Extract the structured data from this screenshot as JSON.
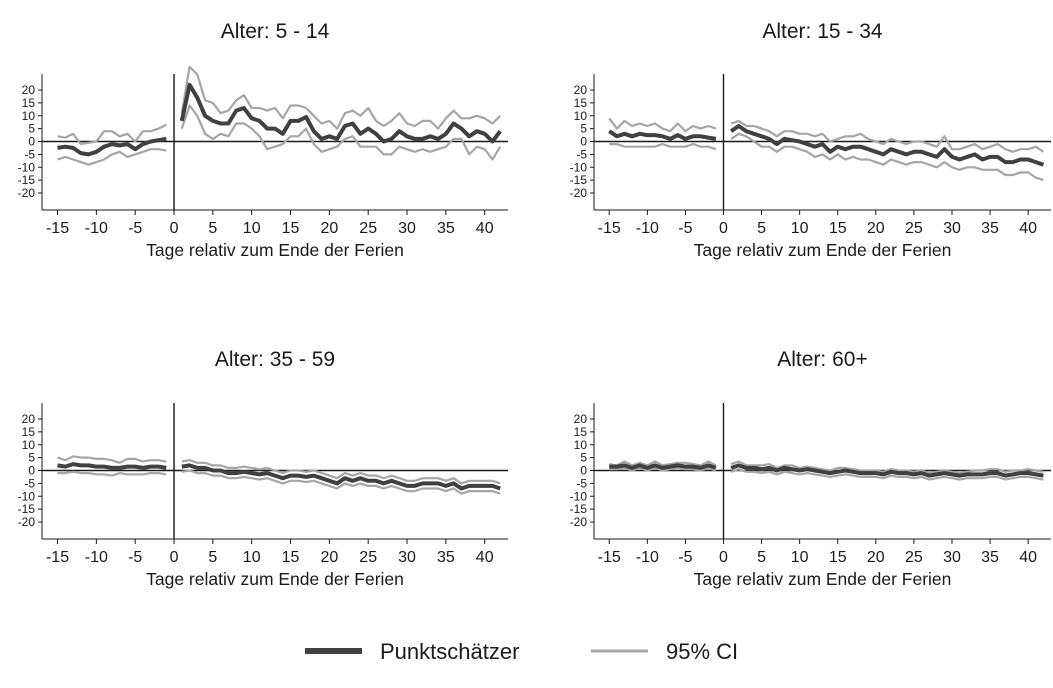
{
  "chart_data": [
    {
      "type": "line",
      "title": "Alter: 5 - 14",
      "xlabel": "Tage relativ zum Ende der Ferien",
      "ylabel": "",
      "xlim": [
        -17,
        43
      ],
      "ylim": [
        -20,
        20
      ],
      "xticks": [
        -15,
        -10,
        -5,
        0,
        5,
        10,
        15,
        20,
        25,
        30,
        35,
        40
      ],
      "yticks": [
        20,
        15,
        10,
        5,
        0,
        -5,
        -10,
        -15,
        -20
      ],
      "x_pre": [
        -15,
        -14,
        -13,
        -12,
        -11,
        -10,
        -9,
        -8,
        -7,
        -6,
        -5,
        -4,
        -3,
        -2,
        -1
      ],
      "x_post": [
        1,
        2,
        3,
        4,
        5,
        6,
        7,
        8,
        9,
        10,
        11,
        12,
        13,
        14,
        15,
        16,
        17,
        18,
        19,
        20,
        21,
        22,
        23,
        24,
        25,
        26,
        27,
        28,
        29,
        30,
        31,
        32,
        33,
        34,
        35,
        36,
        37,
        38,
        39,
        40,
        41,
        42
      ],
      "series": [
        {
          "name": "Punktschätzer",
          "pre": [
            -2.5,
            -2,
            -2.5,
            -4.5,
            -5,
            -4,
            -2,
            -1,
            -1.5,
            -1,
            -3,
            -1,
            0,
            0.5,
            1
          ],
          "post": [
            8,
            22,
            17,
            10,
            8,
            7,
            7,
            12,
            13,
            9,
            8,
            5,
            5,
            3,
            8,
            8,
            9.5,
            4,
            1,
            2,
            1,
            6,
            7,
            3,
            5,
            3,
            0,
            1,
            4,
            2,
            1,
            1,
            2,
            1,
            3,
            7,
            5,
            2,
            4,
            3,
            0,
            4
          ]
        },
        {
          "name": "95% CI",
          "pre": [
            2,
            1.5,
            3,
            -1,
            -0.5,
            0,
            4,
            4,
            2,
            3,
            0,
            4,
            4,
            5,
            6.5
          ],
          "post": [
            11,
            29,
            26,
            16,
            15,
            11,
            12,
            16,
            18,
            13,
            13,
            12,
            13,
            9,
            14,
            14,
            13,
            10,
            7,
            8,
            5,
            11,
            12,
            10,
            13,
            8,
            6,
            8,
            11,
            7,
            6,
            8,
            8,
            5,
            9,
            12,
            9,
            9,
            10,
            9,
            7,
            10
          ]
        },
        {
          "name": "95% CI",
          "pre": [
            -7,
            -6,
            -7,
            -8,
            -9,
            -8,
            -7,
            -5,
            -4,
            -6,
            -5,
            -4,
            -3,
            -3,
            -3.5
          ],
          "post": [
            5,
            14,
            10,
            3,
            1,
            3,
            2,
            7,
            7,
            5,
            2,
            -3,
            -2,
            -1,
            2,
            2,
            5,
            -1,
            -4,
            -3,
            -2,
            1,
            2,
            -2,
            -2,
            -2,
            -5,
            -5,
            -2,
            -3,
            -4,
            -3,
            -4,
            -3,
            -2,
            1,
            1,
            -5,
            -2,
            -3,
            -7,
            -2
          ]
        }
      ]
    },
    {
      "type": "line",
      "title": "Alter: 15 - 34",
      "xlabel": "Tage relativ zum Ende der Ferien",
      "ylabel": "",
      "xlim": [
        -17,
        43
      ],
      "ylim": [
        -20,
        20
      ],
      "xticks": [
        -15,
        -10,
        -5,
        0,
        5,
        10,
        15,
        20,
        25,
        30,
        35,
        40
      ],
      "yticks": [
        20,
        15,
        10,
        5,
        0,
        -5,
        -10,
        -15,
        -20
      ],
      "x_pre": [
        -15,
        -14,
        -13,
        -12,
        -11,
        -10,
        -9,
        -8,
        -7,
        -6,
        -5,
        -4,
        -3,
        -2,
        -1
      ],
      "x_post": [
        1,
        2,
        3,
        4,
        5,
        6,
        7,
        8,
        9,
        10,
        11,
        12,
        13,
        14,
        15,
        16,
        17,
        18,
        19,
        20,
        21,
        22,
        23,
        24,
        25,
        26,
        27,
        28,
        29,
        30,
        31,
        32,
        33,
        34,
        35,
        36,
        37,
        38,
        39,
        40,
        41,
        42
      ],
      "series": [
        {
          "name": "Punktschätzer",
          "pre": [
            4,
            2,
            3,
            2,
            3,
            2.5,
            2.5,
            2,
            1,
            2.5,
            1,
            2,
            2,
            1.5,
            1
          ],
          "post": [
            4,
            6,
            4,
            3,
            2,
            1,
            -1,
            1,
            0.5,
            0,
            -1,
            -2,
            -1,
            -4,
            -2,
            -3,
            -2,
            -2,
            -3,
            -4,
            -5,
            -3,
            -4,
            -5,
            -4,
            -4,
            -5,
            -6,
            -3,
            -6,
            -7,
            -6,
            -5,
            -7,
            -6,
            -6,
            -8,
            -8,
            -7,
            -7,
            -8,
            -9
          ]
        },
        {
          "name": "95% CI",
          "pre": [
            9,
            5,
            8,
            6,
            7,
            6,
            7,
            5,
            4,
            7,
            4,
            6,
            5,
            6,
            5
          ],
          "post": [
            7,
            8,
            6,
            6,
            5,
            4,
            2,
            4,
            4,
            3,
            3,
            2,
            3,
            0,
            1,
            2,
            2,
            3,
            1,
            0,
            -1,
            1,
            0,
            -1,
            0,
            0,
            -1,
            -2,
            2,
            -3,
            -3,
            -2,
            -1,
            -3,
            -2,
            -1,
            -3,
            -4,
            -3,
            -3,
            -2,
            -4
          ]
        },
        {
          "name": "95% CI",
          "pre": [
            -1,
            -1,
            -2,
            -2,
            -2,
            -2,
            -2,
            -1,
            -2,
            -2,
            -2,
            -1,
            -2,
            -2,
            -3
          ],
          "post": [
            1,
            3,
            2,
            0,
            -2,
            -2,
            -4,
            -2,
            -2,
            -3,
            -4,
            -6,
            -5,
            -7,
            -5,
            -7,
            -6,
            -7,
            -7,
            -8,
            -9,
            -7,
            -8,
            -9,
            -8,
            -8,
            -9,
            -10,
            -8,
            -10,
            -11,
            -10,
            -10,
            -11,
            -11,
            -11,
            -13,
            -13,
            -12,
            -12,
            -14,
            -15
          ]
        }
      ]
    },
    {
      "type": "line",
      "title": "Alter: 35 - 59",
      "xlabel": "Tage relativ zum Ende der Ferien",
      "ylabel": "",
      "xlim": [
        -17,
        43
      ],
      "ylim": [
        -20,
        20
      ],
      "xticks": [
        -15,
        -10,
        -5,
        0,
        5,
        10,
        15,
        20,
        25,
        30,
        35,
        40
      ],
      "yticks": [
        20,
        15,
        10,
        5,
        0,
        -5,
        -10,
        -15,
        -20
      ],
      "x_pre": [
        -15,
        -14,
        -13,
        -12,
        -11,
        -10,
        -9,
        -8,
        -7,
        -6,
        -5,
        -4,
        -3,
        -2,
        -1
      ],
      "x_post": [
        1,
        2,
        3,
        4,
        5,
        6,
        7,
        8,
        9,
        10,
        11,
        12,
        13,
        14,
        15,
        16,
        17,
        18,
        19,
        20,
        21,
        22,
        23,
        24,
        25,
        26,
        27,
        28,
        29,
        30,
        31,
        32,
        33,
        34,
        35,
        36,
        37,
        38,
        39,
        40,
        41,
        42
      ],
      "series": [
        {
          "name": "Punktschätzer",
          "pre": [
            2,
            1.5,
            2.5,
            2,
            2,
            1.5,
            1.5,
            1,
            1,
            1.5,
            1.5,
            1,
            1.5,
            1.5,
            1
          ],
          "post": [
            1.5,
            2,
            1,
            1,
            0,
            0,
            -1,
            -1,
            -0.5,
            -1,
            -1.5,
            -1,
            -2,
            -3,
            -2,
            -2,
            -2.5,
            -2,
            -3,
            -4,
            -5,
            -3,
            -4,
            -3,
            -4,
            -4,
            -5,
            -4,
            -5,
            -6,
            -6,
            -5,
            -5,
            -5,
            -6,
            -5,
            -7,
            -6,
            -6,
            -6,
            -6,
            -7
          ]
        },
        {
          "name": "95% CI",
          "pre": [
            5,
            4,
            5.5,
            5,
            5,
            4.5,
            4.5,
            4,
            3,
            4.5,
            4.5,
            3.5,
            4,
            4,
            3.5
          ],
          "post": [
            3.5,
            4,
            3,
            3,
            2,
            2,
            1,
            1,
            1.5,
            1,
            0.5,
            1,
            0,
            -1,
            0,
            0,
            -0.5,
            0,
            -1,
            -2,
            -3,
            -1,
            -2,
            -1,
            -2,
            -2,
            -3,
            -2,
            -3,
            -4,
            -4,
            -3,
            -3,
            -3,
            -4,
            -3,
            -5,
            -4,
            -4,
            -4,
            -4,
            -5
          ]
        },
        {
          "name": "95% CI",
          "pre": [
            -1,
            -1,
            -0.5,
            -1,
            -1,
            -1.5,
            -1.5,
            -2,
            -1,
            -1.5,
            -1.5,
            -1.5,
            -1,
            -1,
            -1.5
          ],
          "post": [
            -0.5,
            0,
            -1,
            -1,
            -2,
            -2,
            -3,
            -3,
            -2.5,
            -3,
            -3.5,
            -3,
            -4,
            -5,
            -4,
            -4,
            -4.5,
            -4,
            -5,
            -6,
            -7,
            -5,
            -6,
            -5,
            -6,
            -6,
            -7,
            -6,
            -7,
            -8,
            -8,
            -7,
            -7,
            -7,
            -8,
            -7,
            -9,
            -8,
            -8,
            -8,
            -8,
            -9
          ]
        }
      ]
    },
    {
      "type": "line",
      "title": "Alter: 60+",
      "xlabel": "Tage relativ zum Ende der Ferien",
      "ylabel": "",
      "xlim": [
        -17,
        43
      ],
      "ylim": [
        -20,
        20
      ],
      "xticks": [
        -15,
        -10,
        -5,
        0,
        5,
        10,
        15,
        20,
        25,
        30,
        35,
        40
      ],
      "yticks": [
        20,
        15,
        10,
        5,
        0,
        -5,
        -10,
        -15,
        -20
      ],
      "x_pre": [
        -15,
        -14,
        -13,
        -12,
        -11,
        -10,
        -9,
        -8,
        -7,
        -6,
        -5,
        -4,
        -3,
        -2,
        -1
      ],
      "x_post": [
        1,
        2,
        3,
        4,
        5,
        6,
        7,
        8,
        9,
        10,
        11,
        12,
        13,
        14,
        15,
        16,
        17,
        18,
        19,
        20,
        21,
        22,
        23,
        24,
        25,
        26,
        27,
        28,
        29,
        30,
        31,
        32,
        33,
        34,
        35,
        36,
        37,
        38,
        39,
        40,
        41,
        42
      ],
      "series": [
        {
          "name": "Punktschätzer",
          "pre": [
            1.5,
            1.5,
            2,
            1,
            2,
            1,
            2,
            1,
            1.5,
            2,
            1.5,
            1.5,
            1,
            2,
            1
          ],
          "post": [
            1,
            2,
            1,
            1,
            0.5,
            1,
            0,
            1,
            0.5,
            0,
            0.5,
            0,
            -0.5,
            -1,
            -0.5,
            0,
            -0.5,
            -1,
            -1,
            -1,
            -1.5,
            -0.5,
            -1,
            -1,
            -1.5,
            -1,
            -2,
            -1.5,
            -1,
            -1.5,
            -2,
            -1.5,
            -1.5,
            -1.5,
            -1,
            -1,
            -2,
            -1.5,
            -1,
            -1,
            -1.5,
            -2
          ]
        },
        {
          "name": "95% CI",
          "pre": [
            2.5,
            2,
            3.5,
            2,
            3,
            2,
            3.5,
            2,
            2.5,
            3,
            3,
            2.5,
            2,
            3.5,
            2
          ],
          "post": [
            2.5,
            3.5,
            2,
            2,
            2,
            2.5,
            1,
            2,
            2,
            1,
            1.5,
            1,
            0.5,
            0,
            1,
            1,
            0.5,
            0,
            0,
            0,
            -0.5,
            0.5,
            0,
            0,
            -0.5,
            0,
            -1,
            -0.5,
            0,
            -0.5,
            -1,
            -0.5,
            0,
            0,
            0.5,
            0.5,
            -0.5,
            0,
            0,
            0.5,
            0,
            -0.5
          ]
        },
        {
          "name": "95% CI",
          "pre": [
            0.5,
            0.5,
            1,
            0,
            1,
            0,
            1,
            0,
            0.5,
            1,
            0.5,
            0.5,
            0,
            1,
            0
          ],
          "post": [
            -0.5,
            0.5,
            -0.5,
            -0.5,
            -1,
            -0.5,
            -1.5,
            -0.5,
            -1,
            -1.5,
            -1,
            -1.5,
            -2,
            -2.5,
            -2,
            -1.5,
            -2,
            -2.5,
            -2.5,
            -2.5,
            -3,
            -2,
            -2.5,
            -2.5,
            -3,
            -2.5,
            -3.5,
            -3,
            -2.5,
            -3,
            -3.5,
            -3,
            -3,
            -3,
            -2.5,
            -2.5,
            -3.5,
            -3,
            -2.5,
            -2.5,
            -3,
            -3.5
          ]
        }
      ]
    }
  ],
  "legend": {
    "items": [
      {
        "label": "Punktschätzer",
        "color": "#404040"
      },
      {
        "label": "95% CI",
        "color": "#a6a6a6"
      }
    ]
  },
  "colors": {
    "point": "#404040",
    "ci": "#a6a6a6",
    "axis": "#1a1a1a"
  }
}
